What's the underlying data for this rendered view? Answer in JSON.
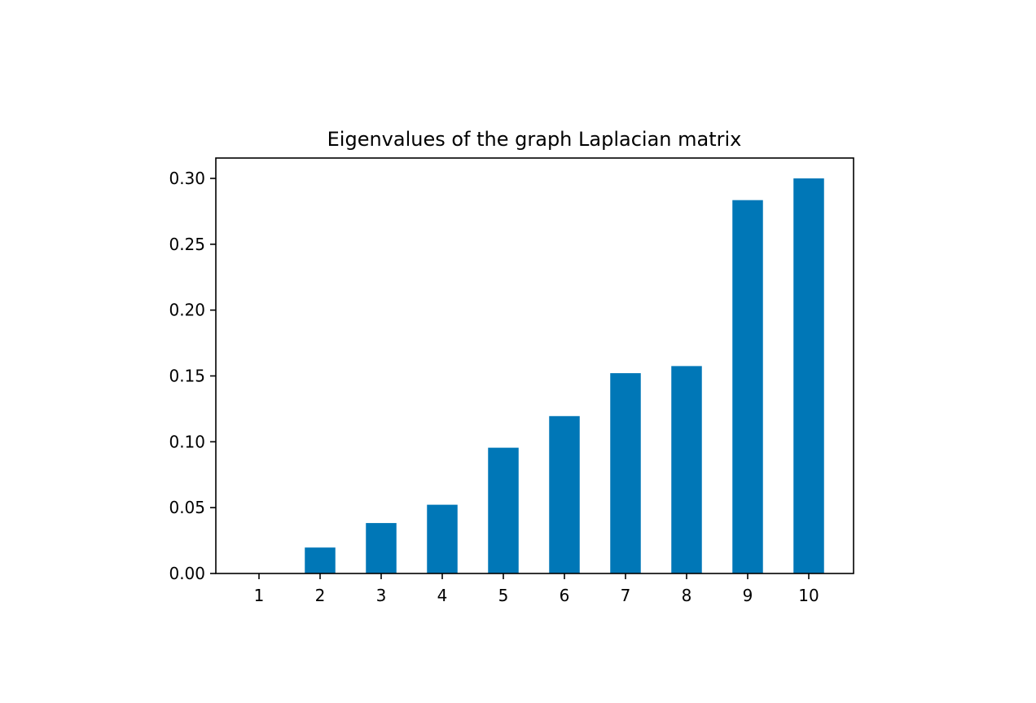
{
  "chart_data": {
    "type": "bar",
    "title": "Eigenvalues of the graph Laplacian matrix",
    "xlabel": "",
    "ylabel": "",
    "categories": [
      "1",
      "2",
      "3",
      "4",
      "5",
      "6",
      "7",
      "8",
      "9",
      "10"
    ],
    "values": [
      0.0,
      0.0197,
      0.0383,
      0.0522,
      0.0955,
      0.1195,
      0.1521,
      0.1575,
      0.2835,
      0.3
    ],
    "ylim": [
      0,
      0.3
    ],
    "yticks": [
      0.0,
      0.05,
      0.1,
      0.15,
      0.2,
      0.25,
      0.3
    ],
    "ytick_labels": [
      "0.00",
      "0.05",
      "0.10",
      "0.15",
      "0.20",
      "0.25",
      "0.30"
    ],
    "grid": false,
    "legend": "none",
    "colors": {
      "bar": "#0077b7",
      "axes": "#000000",
      "background": "#ffffff"
    }
  }
}
